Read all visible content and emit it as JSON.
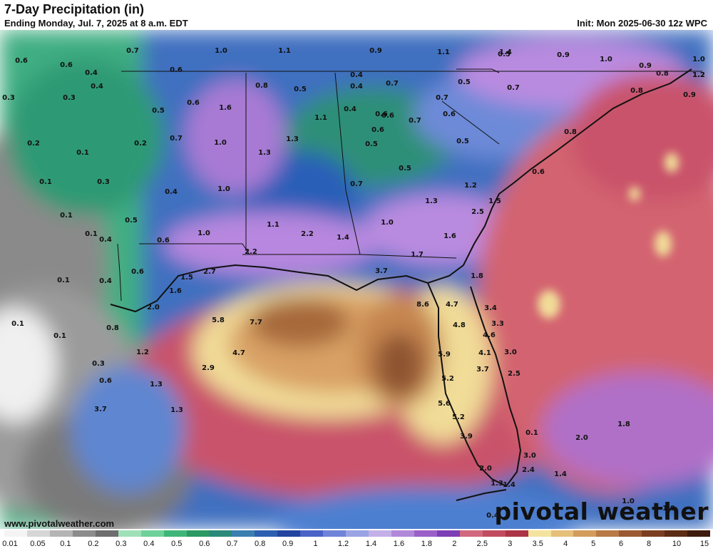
{
  "header": {
    "title": "7-Day Precipitation (in)",
    "subtitle": "Ending Monday, Jul. 7, 2025 at 8 a.m. EDT",
    "init": "Init: Mon 2025-06-30 12z WPC"
  },
  "footer": {
    "site": "www.pivotalweather.com",
    "brand": "pivotal weather"
  },
  "legend": {
    "ticks": [
      "0.01",
      "0.05",
      "0.1",
      "0.2",
      "0.3",
      "0.4",
      "0.5",
      "0.6",
      "0.7",
      "0.8",
      "0.9",
      "1",
      "1.2",
      "1.4",
      "1.6",
      "1.8",
      "2",
      "2.5",
      "3",
      "3.5",
      "4",
      "5",
      "6",
      "8",
      "10",
      "15"
    ],
    "colors": [
      "#f4f4f4",
      "#d6d6d6",
      "#b4b4b4",
      "#8c8c8c",
      "#6e6e6e",
      "#9fe0b8",
      "#6fd19a",
      "#3fb679",
      "#2a9963",
      "#2b8a7a",
      "#3a7fb0",
      "#2c5fb0",
      "#2244a0",
      "#4a63c8",
      "#6f83d8",
      "#9aa3e4",
      "#c3b0e8",
      "#b089d9",
      "#9a61c9",
      "#7d3fb5",
      "#d2687e",
      "#c14c60",
      "#ad3446",
      "#f3e39e",
      "#e5c07a",
      "#d39c5d",
      "#b97a45",
      "#9b5a32",
      "#7a3f21",
      "#5c2c16",
      "#3f1b0c"
    ]
  },
  "map_labels": [
    "0.6",
    "0.7",
    "0.6",
    "1.0",
    "1.1",
    "0.9",
    "1.1",
    "1.4",
    "0.9",
    "1.0",
    "0.4",
    "0.6",
    "0.4",
    "0.4",
    "0.5",
    "1.2",
    "1.2",
    "1.0",
    "0.7",
    "0.3",
    "0.3",
    "0.5",
    "0.6",
    "1.6",
    "0.8",
    "0.5",
    "0.4",
    "0.7",
    "0.7",
    "0.6",
    "0.6",
    "0.5",
    "0.9",
    "0.8",
    "0.8",
    "0.9",
    "0.2",
    "0.1",
    "0.7",
    "1.0",
    "1.3",
    "1.1",
    "0.4",
    "0.6",
    "0.7",
    "0.8",
    "0.2",
    "1.3",
    "0.6",
    "0.5",
    "0.5",
    "0.5",
    "0.6",
    "0.1",
    "0.3",
    "1.0",
    "0.4",
    "0.7",
    "1.2",
    "0.1",
    "0.4",
    "1.3",
    "1.5",
    "0.1",
    "1.1",
    "1.0",
    "2.5",
    "0.5",
    "0.6",
    "1.0",
    "2.2",
    "1.4",
    "1.6",
    "2.2",
    "1.7",
    "0.1",
    "0.4",
    "0.6",
    "2.7",
    "1.5",
    "1.6",
    "3.7",
    "1.8",
    "0.1",
    "2.0",
    "8.6",
    "4.7",
    "3.4",
    "0.8",
    "5.8",
    "7.7",
    "4.8",
    "3.3",
    "0.1",
    "4.6",
    "1.2",
    "4.7",
    "5.9",
    "4.1",
    "3.0",
    "0.3",
    "2.9",
    "3.7",
    "2.5",
    "0.6",
    "1.3",
    "5.2",
    "1.3",
    "5.6",
    "5.2",
    "3.7",
    "0.1",
    "3.9",
    "3.0",
    "2.0",
    "1.8",
    "2.0",
    "2.4",
    "1.4",
    "1.4",
    "1.3",
    "1.0",
    "1.0",
    "0.4"
  ]
}
